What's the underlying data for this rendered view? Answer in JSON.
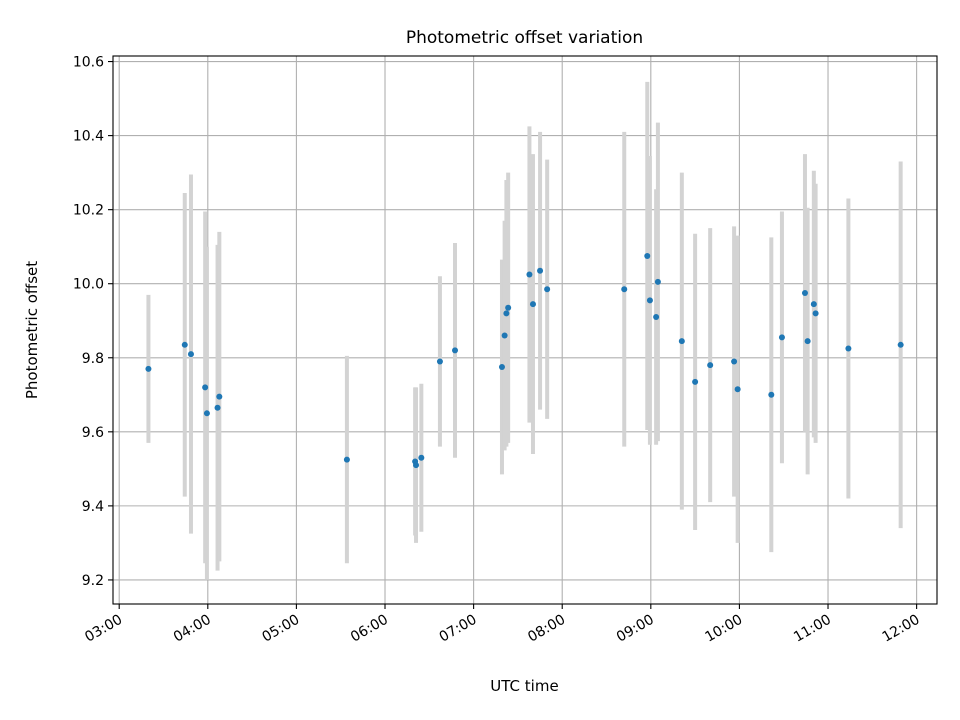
{
  "chart_data": {
    "type": "scatter",
    "title": "Photometric offset variation",
    "xlabel": "UTC time",
    "ylabel": "Photometric offset",
    "x_unit": "hours UTC",
    "xlim": [
      2.93,
      12.23
    ],
    "ylim": [
      9.135,
      10.615
    ],
    "xticks": [
      {
        "value": 3,
        "label": "03:00"
      },
      {
        "value": 4,
        "label": "04:00"
      },
      {
        "value": 5,
        "label": "05:00"
      },
      {
        "value": 6,
        "label": "06:00"
      },
      {
        "value": 7,
        "label": "07:00"
      },
      {
        "value": 8,
        "label": "08:00"
      },
      {
        "value": 9,
        "label": "09:00"
      },
      {
        "value": 10,
        "label": "10:00"
      },
      {
        "value": 11,
        "label": "11:00"
      },
      {
        "value": 12,
        "label": "12:00"
      }
    ],
    "yticks": [
      {
        "value": 9.2,
        "label": "9.2"
      },
      {
        "value": 9.4,
        "label": "9.4"
      },
      {
        "value": 9.6,
        "label": "9.6"
      },
      {
        "value": 9.8,
        "label": "9.8"
      },
      {
        "value": 10.0,
        "label": "10.0"
      },
      {
        "value": 10.2,
        "label": "10.2"
      },
      {
        "value": 10.4,
        "label": "10.4"
      },
      {
        "value": 10.6,
        "label": "10.6"
      }
    ],
    "grid": true,
    "colors": {
      "points": "#1f77b4",
      "errorbars": "#d3d3d3",
      "grid": "#b0b0b0"
    },
    "points": [
      {
        "x": 3.33,
        "y": 9.77,
        "err": 0.2
      },
      {
        "x": 3.74,
        "y": 9.835,
        "err": 0.41
      },
      {
        "x": 3.81,
        "y": 9.81,
        "err": 0.485
      },
      {
        "x": 3.97,
        "y": 9.72,
        "err": 0.475
      },
      {
        "x": 3.99,
        "y": 9.65,
        "err": 0.45
      },
      {
        "x": 4.11,
        "y": 9.665,
        "err": 0.44
      },
      {
        "x": 4.13,
        "y": 9.695,
        "err": 0.445
      },
      {
        "x": 5.57,
        "y": 9.525,
        "err": 0.28
      },
      {
        "x": 6.34,
        "y": 9.52,
        "err": 0.2
      },
      {
        "x": 6.35,
        "y": 9.51,
        "err": 0.21
      },
      {
        "x": 6.41,
        "y": 9.53,
        "err": 0.2
      },
      {
        "x": 6.62,
        "y": 9.79,
        "err": 0.23
      },
      {
        "x": 6.79,
        "y": 9.82,
        "err": 0.29
      },
      {
        "x": 7.32,
        "y": 9.775,
        "err": 0.29
      },
      {
        "x": 7.35,
        "y": 9.86,
        "err": 0.31
      },
      {
        "x": 7.37,
        "y": 9.92,
        "err": 0.36
      },
      {
        "x": 7.39,
        "y": 9.935,
        "err": 0.365
      },
      {
        "x": 7.63,
        "y": 10.025,
        "err": 0.4
      },
      {
        "x": 7.67,
        "y": 9.945,
        "err": 0.405
      },
      {
        "x": 7.75,
        "y": 10.035,
        "err": 0.375
      },
      {
        "x": 7.83,
        "y": 9.985,
        "err": 0.35
      },
      {
        "x": 8.7,
        "y": 9.985,
        "err": 0.425
      },
      {
        "x": 8.96,
        "y": 10.075,
        "err": 0.47
      },
      {
        "x": 8.99,
        "y": 9.955,
        "err": 0.39
      },
      {
        "x": 9.06,
        "y": 9.91,
        "err": 0.345
      },
      {
        "x": 9.08,
        "y": 10.005,
        "err": 0.43
      },
      {
        "x": 9.35,
        "y": 9.845,
        "err": 0.455
      },
      {
        "x": 9.5,
        "y": 9.735,
        "err": 0.4
      },
      {
        "x": 9.67,
        "y": 9.78,
        "err": 0.37
      },
      {
        "x": 9.94,
        "y": 9.79,
        "err": 0.365
      },
      {
        "x": 9.98,
        "y": 9.715,
        "err": 0.415
      },
      {
        "x": 10.36,
        "y": 9.7,
        "err": 0.425
      },
      {
        "x": 10.48,
        "y": 9.855,
        "err": 0.34
      },
      {
        "x": 10.74,
        "y": 9.975,
        "err": 0.375
      },
      {
        "x": 10.77,
        "y": 9.845,
        "err": 0.36
      },
      {
        "x": 10.84,
        "y": 9.945,
        "err": 0.36
      },
      {
        "x": 10.86,
        "y": 9.92,
        "err": 0.35
      },
      {
        "x": 11.23,
        "y": 9.825,
        "err": 0.405
      },
      {
        "x": 11.82,
        "y": 9.835,
        "err": 0.495
      }
    ]
  }
}
